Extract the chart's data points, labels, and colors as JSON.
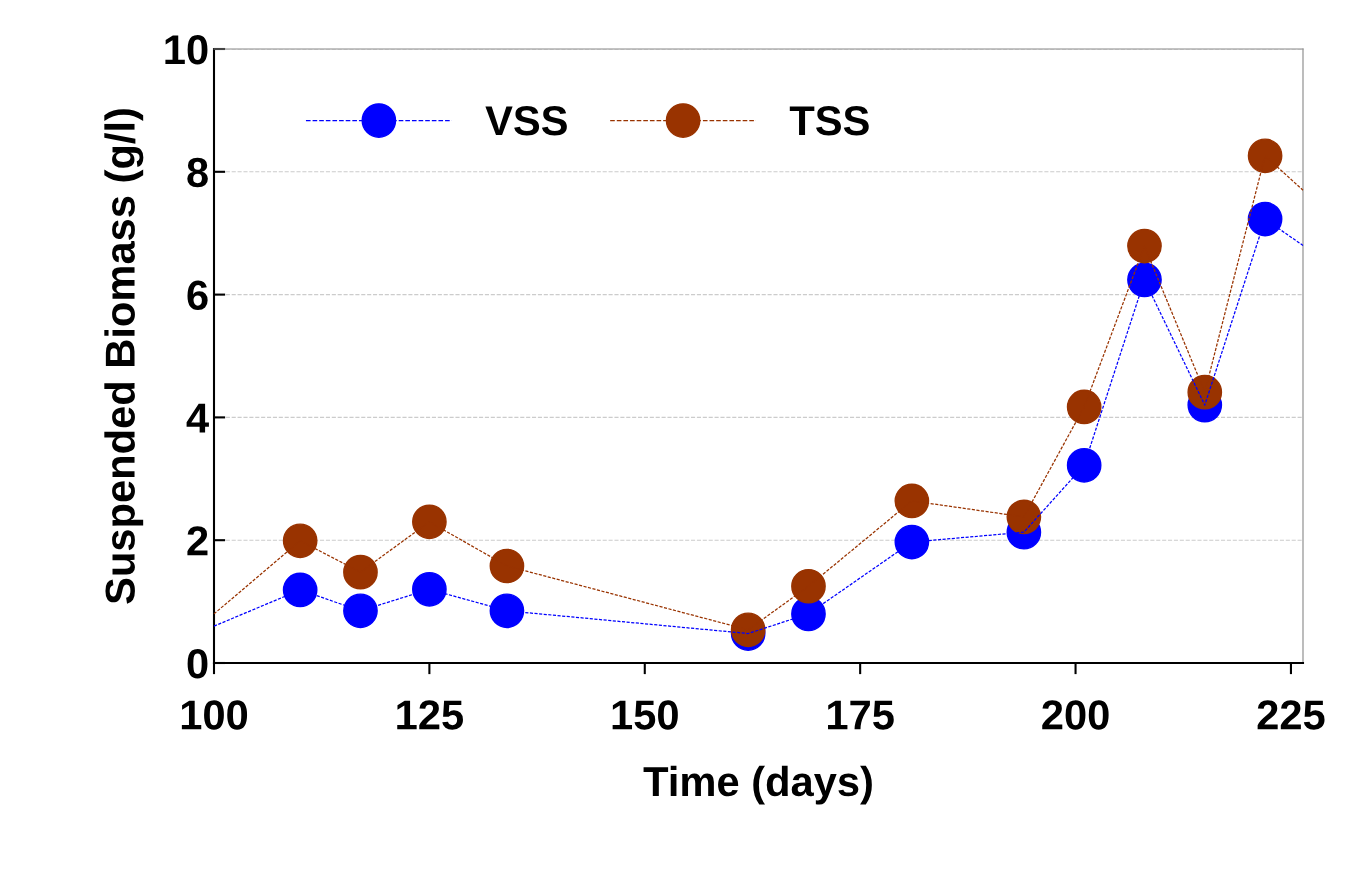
{
  "chart_data": {
    "type": "line",
    "xlabel": "Time (days)",
    "ylabel": "Suspended Biomass (g/l)",
    "x": [
      100,
      110,
      117,
      125,
      134,
      162,
      169,
      181,
      194,
      201,
      208,
      215,
      222,
      226.4
    ],
    "series": [
      {
        "name": "VSS",
        "color": "#0000ff",
        "values": [
          0.6,
          1.19,
          0.85,
          1.2,
          0.85,
          0.48,
          0.8,
          1.97,
          2.13,
          3.22,
          6.24,
          4.2,
          7.23,
          6.8
        ]
      },
      {
        "name": "TSS",
        "color": "#993300",
        "values": [
          0.8,
          1.99,
          1.48,
          2.3,
          1.58,
          0.54,
          1.25,
          2.64,
          2.38,
          4.17,
          6.79,
          4.41,
          8.26,
          7.7
        ]
      }
    ],
    "xlim": [
      100,
      226.4
    ],
    "xticks": [
      100,
      125,
      150,
      175,
      200,
      225
    ],
    "ylim": [
      0,
      10
    ],
    "yticks": [
      0,
      2,
      4,
      6,
      8,
      10
    ],
    "grid": "y",
    "legend": "top left",
    "marker": "circle",
    "line_style": "dashed"
  }
}
